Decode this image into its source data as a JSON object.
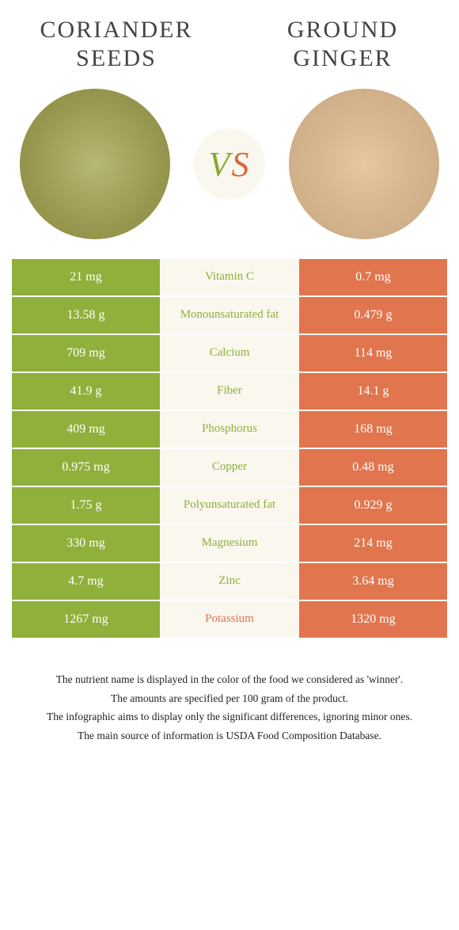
{
  "left": {
    "title_line1": "Coriander",
    "title_line2": "seeds",
    "color": "#8fb03a",
    "image_bg": "radial-gradient(circle, #b8b878 0%, #a8a860 30%, #989850 60%, #888840 100%)"
  },
  "right": {
    "title_line1": "Ground",
    "title_line2": "ginger",
    "color": "#e0754e",
    "image_bg": "radial-gradient(circle, #e8c8a0 0%, #d8b890 40%, #d0b088 70%, rgba(255,255,255,0) 95%)"
  },
  "vs": {
    "v": "V",
    "s": "S",
    "bg": "#faf7ef"
  },
  "rows": [
    {
      "left": "21 mg",
      "label": "Vitamin C",
      "right": "0.7 mg",
      "winner": "left"
    },
    {
      "left": "13.58 g",
      "label": "Monounsaturated fat",
      "right": "0.479 g",
      "winner": "left"
    },
    {
      "left": "709 mg",
      "label": "Calcium",
      "right": "114 mg",
      "winner": "left"
    },
    {
      "left": "41.9 g",
      "label": "Fiber",
      "right": "14.1 g",
      "winner": "left"
    },
    {
      "left": "409 mg",
      "label": "Phosphorus",
      "right": "168 mg",
      "winner": "left"
    },
    {
      "left": "0.975 mg",
      "label": "Copper",
      "right": "0.48 mg",
      "winner": "left"
    },
    {
      "left": "1.75 g",
      "label": "Polyunsaturated fat",
      "right": "0.929 g",
      "winner": "left"
    },
    {
      "left": "330 mg",
      "label": "Magnesium",
      "right": "214 mg",
      "winner": "left"
    },
    {
      "left": "4.7 mg",
      "label": "Zinc",
      "right": "3.64 mg",
      "winner": "left"
    },
    {
      "left": "1267 mg",
      "label": "Potassium",
      "right": "1320 mg",
      "winner": "right"
    }
  ],
  "footer": {
    "line1": "The nutrient name is displayed in the color of the food we considered as 'winner'.",
    "line2": "The amounts are specified per 100 gram of the product.",
    "line3": "The infographic aims to display only the significant differences, ignoring minor ones.",
    "line4": "The main source of information is USDA Food Composition Database."
  }
}
